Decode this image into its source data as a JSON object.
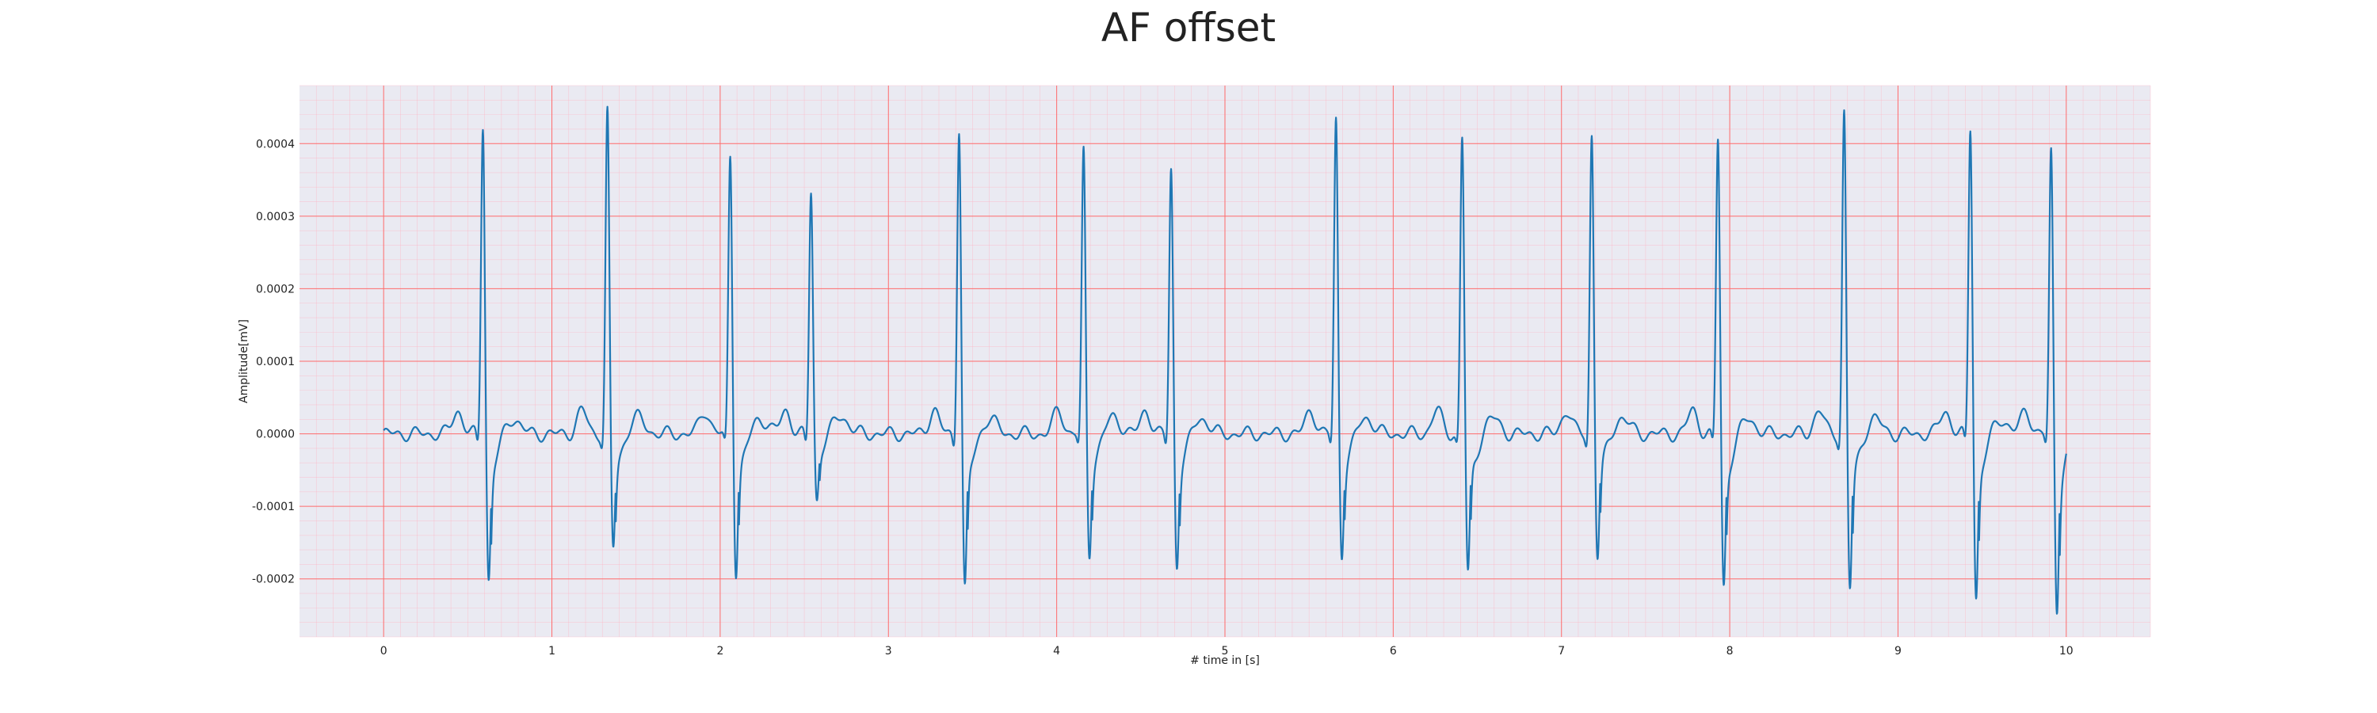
{
  "chart_data": {
    "type": "line",
    "title": "AF offset",
    "xlabel": "# time in [s]",
    "ylabel": "Amplitude[mV]",
    "xlim": [
      -0.5,
      10.5
    ],
    "ylim": [
      -0.00028,
      0.00048
    ],
    "xticks": [
      0,
      1,
      2,
      3,
      4,
      5,
      6,
      7,
      8,
      9,
      10
    ],
    "xtick_labels": [
      "0",
      "1",
      "2",
      "3",
      "4",
      "5",
      "6",
      "7",
      "8",
      "9",
      "10"
    ],
    "yticks": [
      -0.0002,
      -0.0001,
      0.0,
      0.0001,
      0.0002,
      0.0003,
      0.0004
    ],
    "ytick_labels": [
      "-0.0002",
      "-0.0001",
      "0.0000",
      "0.0001",
      "0.0002",
      "0.0003",
      "0.0004"
    ],
    "grid": true,
    "minor_grid": true,
    "background": "#eaeaf2",
    "major_grid_color": "#ff6b6b",
    "minor_grid_color": "#ffb3c1",
    "line_color": "#1f77b4",
    "beat_times": [
      0.59,
      1.33,
      2.06,
      2.54,
      3.42,
      4.16,
      4.68,
      5.66,
      6.41,
      7.18,
      7.93,
      8.68,
      9.43,
      9.91
    ],
    "beat_peaks": [
      0.00043,
      0.000445,
      0.000387,
      0.000336,
      0.000426,
      0.00039,
      0.000368,
      0.000436,
      0.000412,
      0.000415,
      0.00041,
      0.000447,
      0.000427,
      0.000392
    ],
    "beat_troughs": [
      -0.000205,
      -0.000162,
      -0.000193,
      -9.4e-05,
      -0.000218,
      -0.00017,
      -0.000185,
      -0.00017,
      -0.000197,
      -0.000172,
      -0.000214,
      -0.000218,
      -0.000229,
      -0.000245
    ]
  }
}
